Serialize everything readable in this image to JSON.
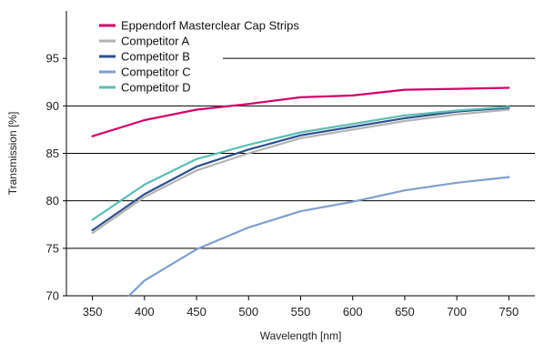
{
  "chart_data": {
    "type": "line",
    "xlabel": "Wavelength [nm]",
    "ylabel": "Transmission [%]",
    "xlim": [
      325,
      775
    ],
    "ylim": [
      70,
      100
    ],
    "x_ticks": [
      350,
      400,
      450,
      500,
      550,
      600,
      650,
      700,
      750
    ],
    "y_ticks": [
      70,
      75,
      80,
      85,
      90,
      95
    ],
    "grid": "horizontal",
    "legend_position": "top-left",
    "series": [
      {
        "name": "Eppendorf Masterclear Cap Strips",
        "color": "#d4006a",
        "x": [
          350,
          400,
          450,
          500,
          550,
          600,
          650,
          700,
          750
        ],
        "y": [
          86.8,
          88.5,
          89.6,
          90.2,
          90.9,
          91.1,
          91.7,
          91.8,
          91.9
        ]
      },
      {
        "name": "Competitor A",
        "color": "#b4b4b4",
        "x": [
          350,
          400,
          450,
          500,
          550,
          600,
          650,
          700,
          750
        ],
        "y": [
          76.6,
          80.4,
          83.2,
          85.0,
          86.6,
          87.5,
          88.4,
          89.1,
          89.6
        ]
      },
      {
        "name": "Competitor B",
        "color": "#2f4f8f",
        "x": [
          350,
          400,
          450,
          500,
          550,
          600,
          650,
          700,
          750
        ],
        "y": [
          76.9,
          80.7,
          83.6,
          85.4,
          86.9,
          87.8,
          88.7,
          89.4,
          89.8
        ]
      },
      {
        "name": "Competitor C",
        "color": "#7f9fd0",
        "x": [
          385,
          400,
          450,
          500,
          550,
          600,
          650,
          700,
          750
        ],
        "y": [
          70.0,
          71.6,
          74.9,
          77.2,
          78.9,
          79.9,
          81.1,
          81.9,
          82.5
        ]
      },
      {
        "name": "Competitor D",
        "color": "#5cbdb3",
        "x": [
          350,
          400,
          450,
          500,
          550,
          600,
          650,
          700,
          750
        ],
        "y": [
          78.0,
          81.7,
          84.4,
          85.9,
          87.2,
          88.1,
          89.0,
          89.5,
          89.9
        ]
      }
    ]
  }
}
